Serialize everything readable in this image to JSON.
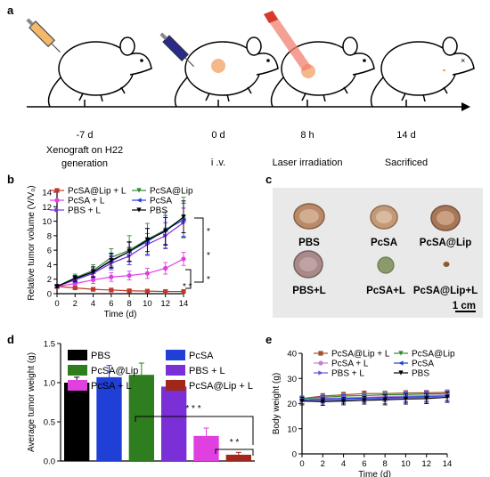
{
  "figure": {
    "panel_labels": [
      "a",
      "b",
      "c",
      "d",
      "e"
    ]
  },
  "timeline": {
    "events": [
      {
        "time": "-7 d",
        "label_lines": [
          "Xenograft on H22",
          "generation"
        ]
      },
      {
        "time": "0 d",
        "label_lines": [
          "i .v."
        ]
      },
      {
        "time": "8 h",
        "label_lines": [
          "Laser irradiation"
        ]
      },
      {
        "time": "14 d",
        "label_lines": [
          "Sacrificed"
        ]
      }
    ]
  },
  "tumor_photos": {
    "labels": [
      "PBS",
      "PcSA",
      "PcSA@Lip",
      "PBS+L",
      "PcSA+L",
      "PcSA@Lip+L"
    ],
    "scale_bar": "1 cm",
    "background": "#e9e9e9"
  },
  "significance": {
    "b": [
      "*",
      "*",
      "*",
      "* *"
    ],
    "d": [
      "* * *",
      "* *"
    ]
  },
  "chart_data": [
    {
      "panel": "b",
      "type": "line",
      "xlabel": "Time (d)",
      "ylabel": "Relative tumor volume (V/V₀)",
      "x": [
        0,
        2,
        4,
        6,
        8,
        10,
        12,
        14
      ],
      "xlim": [
        0,
        14
      ],
      "ylim": [
        0,
        14
      ],
      "xticks": [
        "0",
        "2",
        "4",
        "6",
        "8",
        "10",
        "12",
        "14"
      ],
      "yticks": [
        "0",
        "2",
        "4",
        "6",
        "8",
        "10",
        "12",
        "14"
      ],
      "legend_position": "top",
      "series": [
        {
          "name": "PcSA@Lip + L",
          "color": "#c0392b",
          "marker": "square",
          "values": [
            1,
            0.8,
            0.6,
            0.5,
            0.4,
            0.35,
            0.3,
            0.3
          ],
          "err": [
            0.1,
            0.1,
            0.1,
            0.1,
            0.1,
            0.1,
            0.1,
            0.1
          ]
        },
        {
          "name": "PcSA@Lip",
          "color": "#2e8b2e",
          "marker": "triangle-down",
          "values": [
            1,
            2.2,
            3.2,
            5.0,
            6.0,
            7.5,
            8.8,
            10.5
          ],
          "err": [
            0.2,
            0.5,
            0.8,
            1.2,
            2.0,
            2.2,
            2.5,
            2.8
          ]
        },
        {
          "name": "PcSA + L",
          "color": "#e040e0",
          "marker": "circle",
          "values": [
            1,
            1.4,
            1.9,
            2.3,
            2.5,
            2.8,
            3.5,
            4.8
          ],
          "err": [
            0.2,
            0.3,
            0.5,
            0.6,
            0.6,
            0.7,
            0.8,
            0.9
          ]
        },
        {
          "name": "PcSA",
          "color": "#1f3fd6",
          "marker": "triangle-left",
          "values": [
            1,
            2.0,
            3.0,
            4.5,
            5.8,
            7.2,
            8.8,
            10.2
          ],
          "err": [
            0.2,
            0.4,
            0.7,
            1.0,
            1.4,
            1.8,
            2.0,
            2.3
          ]
        },
        {
          "name": "PBS + L",
          "color": "#7b2fd6",
          "marker": "triangle-right",
          "values": [
            1,
            1.9,
            2.8,
            4.2,
            5.2,
            6.8,
            8.0,
            9.8
          ],
          "err": [
            0.2,
            0.4,
            0.6,
            0.9,
            1.2,
            1.5,
            1.8,
            2.0
          ]
        },
        {
          "name": "PBS",
          "color": "#000000",
          "marker": "triangle-down",
          "values": [
            1,
            2.1,
            3.0,
            4.6,
            5.8,
            7.4,
            8.6,
            10.6
          ],
          "err": [
            0.2,
            0.4,
            0.7,
            1.0,
            1.3,
            1.6,
            1.9,
            2.2
          ]
        }
      ]
    },
    {
      "panel": "d",
      "type": "bar",
      "ylabel": "Average tumor weight (g)",
      "ylim": [
        0,
        1.5
      ],
      "yticks": [
        "0.0",
        "0.5",
        "1.0",
        "1.5"
      ],
      "categories": [
        "PBS",
        "PcSA",
        "PcSA@Lip",
        "PBS + L",
        "PcSA + L",
        "PcSA@Lip + L"
      ],
      "values": [
        1.0,
        1.07,
        1.1,
        0.95,
        0.32,
        0.08
      ],
      "err": [
        0.07,
        0.15,
        0.15,
        0.08,
        0.1,
        0.03
      ],
      "colors": [
        "#000000",
        "#1f3fd6",
        "#2e7d1e",
        "#7b2fd6",
        "#e040e0",
        "#a0271c"
      ],
      "legend_position": "top"
    },
    {
      "panel": "e",
      "type": "line",
      "xlabel": "Time (d)",
      "ylabel": "Body weight (g)",
      "x": [
        0,
        2,
        4,
        6,
        8,
        10,
        12,
        14
      ],
      "xlim": [
        0,
        14
      ],
      "ylim": [
        0,
        40
      ],
      "xticks": [
        "0",
        "2",
        "4",
        "6",
        "8",
        "10",
        "12",
        "14"
      ],
      "yticks": [
        "0",
        "10",
        "20",
        "30",
        "40"
      ],
      "legend_position": "top",
      "series": [
        {
          "name": "PcSA@Lip + L",
          "color": "#a0522d",
          "marker": "square",
          "values": [
            22,
            23,
            23.5,
            24,
            24,
            24.2,
            24.3,
            24.5
          ],
          "err": [
            1,
            1,
            1,
            1,
            1,
            1,
            1,
            1
          ]
        },
        {
          "name": "PcSA@Lip",
          "color": "#2e8b2e",
          "marker": "triangle-down",
          "values": [
            22,
            22.5,
            23,
            23.2,
            23.5,
            23.6,
            23.8,
            24
          ],
          "err": [
            1,
            1,
            1,
            1,
            1,
            1,
            1,
            1
          ]
        },
        {
          "name": "PcSA + L",
          "color": "#c67be0",
          "marker": "circle",
          "values": [
            21.5,
            22,
            22.3,
            22.5,
            22.8,
            23,
            23.2,
            23.5
          ],
          "err": [
            1.5,
            1.5,
            1.5,
            1.5,
            2,
            2,
            2,
            2
          ]
        },
        {
          "name": "PcSA",
          "color": "#1f3fd6",
          "marker": "triangle-left",
          "values": [
            21.5,
            21.8,
            22,
            22.2,
            22.4,
            22.6,
            22.8,
            23
          ],
          "err": [
            1.5,
            1.5,
            1.5,
            1.5,
            1.5,
            2,
            2,
            2
          ]
        },
        {
          "name": "PBS + L",
          "color": "#5a5ad6",
          "marker": "triangle-right",
          "values": [
            21,
            21.3,
            21.5,
            21.8,
            22,
            22.3,
            22.5,
            23
          ],
          "err": [
            1.5,
            1.5,
            1.5,
            1.5,
            2,
            2,
            2,
            2
          ]
        },
        {
          "name": "PBS",
          "color": "#000000",
          "marker": "triangle-down",
          "values": [
            21,
            20.8,
            21,
            21.3,
            21.5,
            21.8,
            22,
            22.5
          ],
          "err": [
            1.5,
            1.5,
            1.5,
            1.5,
            2,
            2,
            2,
            2
          ]
        }
      ]
    }
  ]
}
